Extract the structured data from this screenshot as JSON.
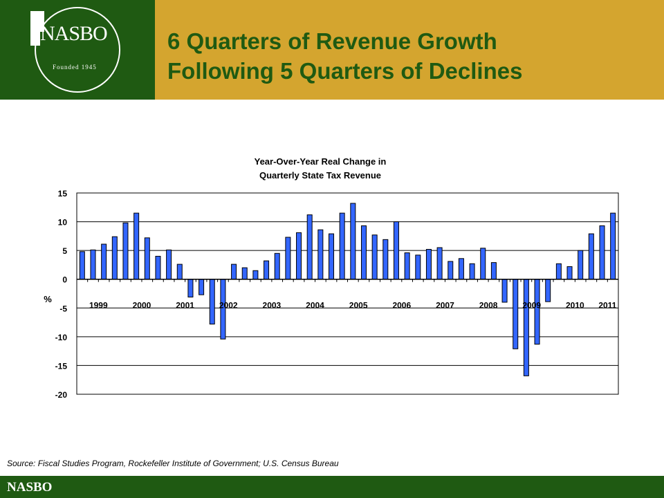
{
  "header": {
    "logo_text": "NASBO",
    "logo_founded": "Founded 1945",
    "title_line1": "6 Quarters of Revenue Growth",
    "title_line2": "Following 5 Quarters of Declines"
  },
  "colors": {
    "header_gold": "#d4a52f",
    "brand_green": "#1f5a12",
    "bar_blue": "#3366ff"
  },
  "chart_data": {
    "type": "bar",
    "title_line1": "Year-Over-Year Real Change in",
    "title_line2": "Quarterly State Tax Revenue",
    "ylabel": "%",
    "ylim": [
      -20,
      15
    ],
    "yticks": [
      "15",
      "10",
      "5",
      "0",
      "-5",
      "-10",
      "-15",
      "-20"
    ],
    "year_labels": [
      "1999",
      "2000",
      "2001",
      "2002",
      "2003",
      "2004",
      "2005",
      "2006",
      "2007",
      "2008",
      "2009",
      "2010",
      "2011"
    ],
    "values": [
      4.8,
      5.1,
      6.1,
      7.4,
      9.8,
      11.5,
      7.2,
      4.0,
      5.1,
      2.6,
      -3.1,
      -2.7,
      -7.8,
      -10.4,
      2.6,
      2.0,
      1.5,
      3.2,
      4.5,
      7.3,
      8.1,
      11.2,
      8.6,
      7.9,
      11.5,
      13.2,
      9.3,
      7.7,
      6.9,
      10.0,
      4.6,
      4.2,
      5.2,
      5.5,
      3.1,
      3.6,
      2.7,
      5.4,
      2.9,
      -4.0,
      -12.1,
      -16.8,
      -11.3,
      -3.9,
      2.7,
      2.2,
      5.0,
      7.9,
      9.3,
      11.5
    ],
    "grid": true
  },
  "source": "Source: Fiscal Studies Program, Rockefeller Institute of Government; U.S. Census Bureau",
  "footer": {
    "label": "NASBO"
  }
}
